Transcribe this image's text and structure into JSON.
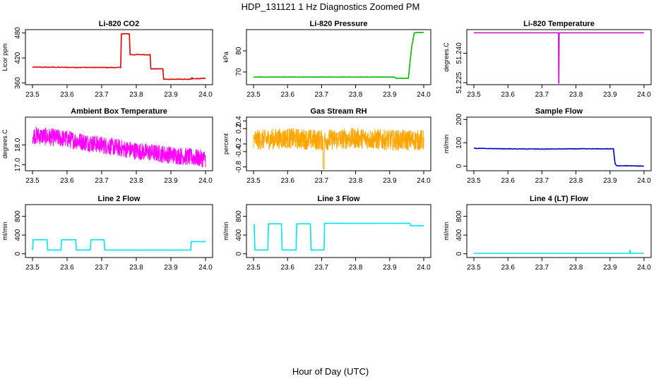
{
  "figure": {
    "title": "HDP_131121  1 Hz Diagnostics Zoomed PM",
    "xlabel": "Hour of Day (UTC)"
  },
  "chart_data": [
    {
      "type": "line",
      "title": "Li-820 CO2",
      "ylabel": "Licor ppm",
      "color": "#e00000",
      "xlim": [
        23.5,
        24.0
      ],
      "ylim": [
        356,
        488
      ],
      "xticks": [
        "23.5",
        "23.6",
        "23.7",
        "23.8",
        "23.9",
        "24.0"
      ],
      "yticks": [
        "360",
        "420",
        "480"
      ],
      "series": [
        {
          "name": "CO2",
          "x": [
            23.5,
            23.755,
            23.757,
            23.78,
            23.782,
            23.84,
            23.842,
            23.877,
            23.879,
            23.96,
            23.961,
            23.962,
            24.0
          ],
          "y": [
            398,
            397,
            478,
            478,
            428,
            428,
            394,
            394,
            369,
            369,
            374,
            370,
            371
          ]
        }
      ]
    },
    {
      "type": "line",
      "title": "Li-820 Pressure",
      "ylabel": "kPa",
      "color": "#00bb00",
      "xlim": [
        23.5,
        24.0
      ],
      "ylim": [
        64,
        90
      ],
      "xticks": [
        "23.5",
        "23.6",
        "23.7",
        "23.8",
        "23.9",
        "24.0"
      ],
      "yticks": [
        "70",
        "80"
      ],
      "series": [
        {
          "name": "Pressure",
          "x": [
            23.5,
            23.915,
            23.918,
            23.955,
            23.96,
            23.965,
            23.972,
            23.975,
            24.0
          ],
          "y": [
            67.6,
            67.6,
            67.0,
            67.0,
            75,
            82,
            88.4,
            88.6,
            88.6
          ]
        }
      ]
    },
    {
      "type": "line",
      "title": "Li-820 Temperature",
      "ylabel": "degrees.C",
      "color": "#cc00cc",
      "xlim": [
        23.5,
        24.0
      ],
      "ylim": [
        51.224,
        51.252
      ],
      "xticks": [
        "23.5",
        "23.6",
        "23.7",
        "23.8",
        "23.9",
        "24.0"
      ],
      "yticks": [
        "51.225",
        "51.240"
      ],
      "series": [
        {
          "name": "Temperature",
          "x": [
            23.5,
            23.749,
            23.7495,
            23.7505,
            24.0
          ],
          "y": [
            51.2504,
            51.2504,
            51.2245,
            51.2504,
            51.2504
          ]
        }
      ]
    },
    {
      "type": "line",
      "title": "Ambient Box Temperature",
      "ylabel": "degrees.C",
      "color": "#ff00ff",
      "xlim": [
        23.5,
        24.0
      ],
      "ylim": [
        16.7,
        19.4
      ],
      "xticks": [
        "23.5",
        "23.6",
        "23.7",
        "23.8",
        "23.9",
        "24.0"
      ],
      "yticks": [
        "17.0",
        "18.0"
      ],
      "series": [
        {
          "name": "Box Temp",
          "x": [
            23.5,
            23.6,
            23.7,
            23.8,
            23.9,
            24.0
          ],
          "y": [
            18.5,
            18.3,
            18.0,
            17.7,
            17.5,
            17.3
          ]
        }
      ]
    },
    {
      "type": "line",
      "title": "Gas Stream RH",
      "ylabel": "percent",
      "color": "#ffa500",
      "xlim": [
        23.5,
        24.0
      ],
      "ylim": [
        -0.9,
        0.5
      ],
      "xticks": [
        "23.5",
        "23.6",
        "23.7",
        "23.8",
        "23.9",
        "24.0"
      ],
      "yticks": [
        "-0.8",
        "-0.4",
        "-0.2",
        "0.2",
        "0.4"
      ],
      "series": [
        {
          "name": "RH",
          "x": [
            23.5,
            23.6,
            23.7,
            23.8,
            23.9,
            24.0
          ],
          "y": [
            -0.1,
            -0.05,
            -0.1,
            -0.05,
            -0.1,
            -0.1
          ]
        }
      ]
    },
    {
      "type": "line",
      "title": "Sample Flow",
      "ylabel": "ml/min",
      "color": "#0000cc",
      "xlim": [
        23.5,
        24.0
      ],
      "ylim": [
        -20,
        210
      ],
      "xticks": [
        "23.5",
        "23.6",
        "23.7",
        "23.8",
        "23.9",
        "24.0"
      ],
      "yticks": [
        "0",
        "100",
        "200"
      ],
      "series": [
        {
          "name": "Sample Flow",
          "x": [
            23.5,
            23.6,
            23.7,
            23.8,
            23.91,
            23.915,
            23.92,
            24.0
          ],
          "y": [
            76,
            74,
            73,
            74,
            74,
            10,
            2,
            0
          ]
        }
      ]
    },
    {
      "type": "line",
      "title": "Line 2 Flow",
      "ylabel": "ml/min",
      "color": "#00e5ee",
      "xlim": [
        23.5,
        24.0
      ],
      "ylim": [
        -80,
        1050
      ],
      "xticks": [
        "23.5",
        "23.6",
        "23.7",
        "23.8",
        "23.9",
        "24.0"
      ],
      "yticks": [
        "0",
        "400",
        "800"
      ],
      "series": [
        {
          "name": "Line 2",
          "x": [
            23.5,
            23.502,
            23.542,
            23.544,
            23.582,
            23.584,
            23.625,
            23.627,
            23.667,
            23.669,
            23.707,
            23.709,
            23.957,
            23.959,
            24.0
          ],
          "y": [
            80,
            300,
            300,
            80,
            80,
            300,
            300,
            80,
            80,
            300,
            300,
            80,
            80,
            260,
            260
          ]
        }
      ]
    },
    {
      "type": "line",
      "title": "Line 3 Flow",
      "ylabel": "ml/min",
      "color": "#00e5ee",
      "xlim": [
        23.5,
        24.0
      ],
      "ylim": [
        -80,
        1050
      ],
      "xticks": [
        "23.5",
        "23.6",
        "23.7",
        "23.8",
        "23.9",
        "24.0"
      ],
      "yticks": [
        "0",
        "400",
        "800"
      ],
      "series": [
        {
          "name": "Line 3",
          "x": [
            23.5,
            23.502,
            23.504,
            23.542,
            23.544,
            23.582,
            23.584,
            23.625,
            23.627,
            23.667,
            23.669,
            23.707,
            23.709,
            23.8,
            23.96,
            23.962,
            24.0
          ],
          "y": [
            620,
            620,
            80,
            80,
            640,
            640,
            80,
            80,
            640,
            640,
            80,
            80,
            650,
            650,
            650,
            600,
            600
          ]
        }
      ]
    },
    {
      "type": "line",
      "title": "Line 4 (LT) Flow",
      "ylabel": "ml/min",
      "color": "#00e5ee",
      "xlim": [
        23.5,
        24.0
      ],
      "ylim": [
        -80,
        1050
      ],
      "xticks": [
        "23.5",
        "23.6",
        "23.7",
        "23.8",
        "23.9",
        "24.0"
      ],
      "yticks": [
        "0",
        "400",
        "800"
      ],
      "series": [
        {
          "name": "Line 4",
          "x": [
            23.5,
            23.958,
            23.959,
            23.96,
            24.0
          ],
          "y": [
            10,
            10,
            80,
            10,
            10
          ]
        }
      ]
    }
  ]
}
